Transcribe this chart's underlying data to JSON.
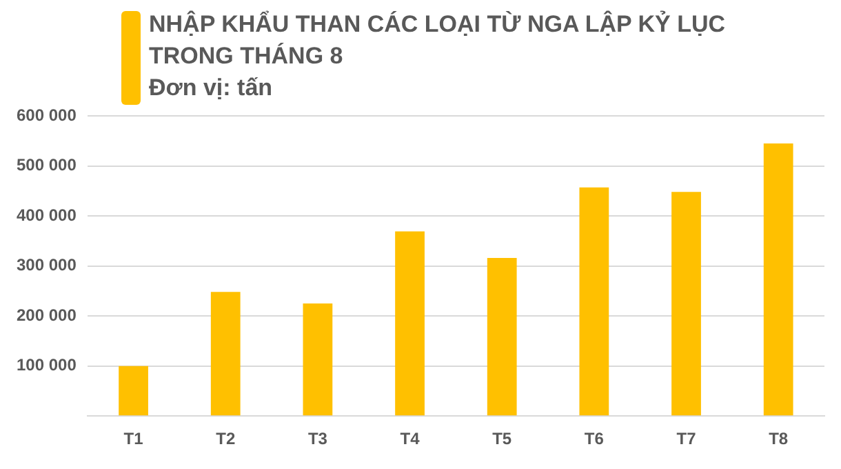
{
  "chart_data": {
    "type": "bar",
    "title": "NHẬP KHẨU THAN CÁC LOẠI TỪ NGA LẬP KỶ LỤC TRONG THÁNG 8",
    "subtitle": "Đơn vị: tấn",
    "categories": [
      "T1",
      "T2",
      "T3",
      "T4",
      "T5",
      "T6",
      "T7",
      "T8"
    ],
    "values": [
      100000,
      248000,
      225000,
      369000,
      316000,
      457000,
      448000,
      545000
    ],
    "color": "#ffc000",
    "ylim": [
      0,
      600000
    ],
    "yticks": [
      {
        "value": 0,
        "label": null
      },
      {
        "value": 100000,
        "label": "100 000"
      },
      {
        "value": 200000,
        "label": "200 000"
      },
      {
        "value": 300000,
        "label": "300 000"
      },
      {
        "value": 400000,
        "label": "400 000"
      },
      {
        "value": 500000,
        "label": "500 000"
      },
      {
        "value": 600000,
        "label": "600 000"
      }
    ],
    "grid": "y"
  }
}
